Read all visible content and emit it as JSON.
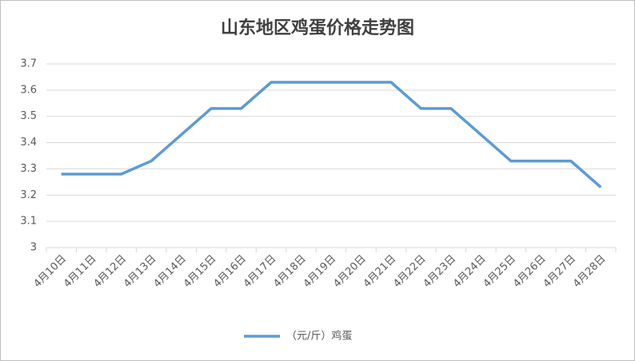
{
  "chart_data": {
    "type": "line",
    "title": "山东地区鸡蛋价格走势图",
    "categories": [
      "4月10日",
      "4月11日",
      "4月12日",
      "4月13日",
      "4月14日",
      "4月15日",
      "4月16日",
      "4月17日",
      "4月18日",
      "4月19日",
      "4月20日",
      "4月21日",
      "4月22日",
      "4月23日",
      "4月24日",
      "4月25日",
      "4月26日",
      "4月27日",
      "4月28日"
    ],
    "series": [
      {
        "name": "（元/斤）鸡蛋",
        "color": "#5b9bd5",
        "values": [
          3.28,
          3.28,
          3.28,
          3.33,
          3.43,
          3.53,
          3.53,
          3.63,
          3.63,
          3.63,
          3.63,
          3.63,
          3.53,
          3.53,
          3.43,
          3.33,
          3.33,
          3.33,
          3.23
        ]
      }
    ],
    "ylim": [
      3,
      3.7
    ],
    "yticks": [
      3,
      3.1,
      3.2,
      3.3,
      3.4,
      3.5,
      3.6,
      3.7
    ],
    "grid": true,
    "legend": "bottom"
  }
}
